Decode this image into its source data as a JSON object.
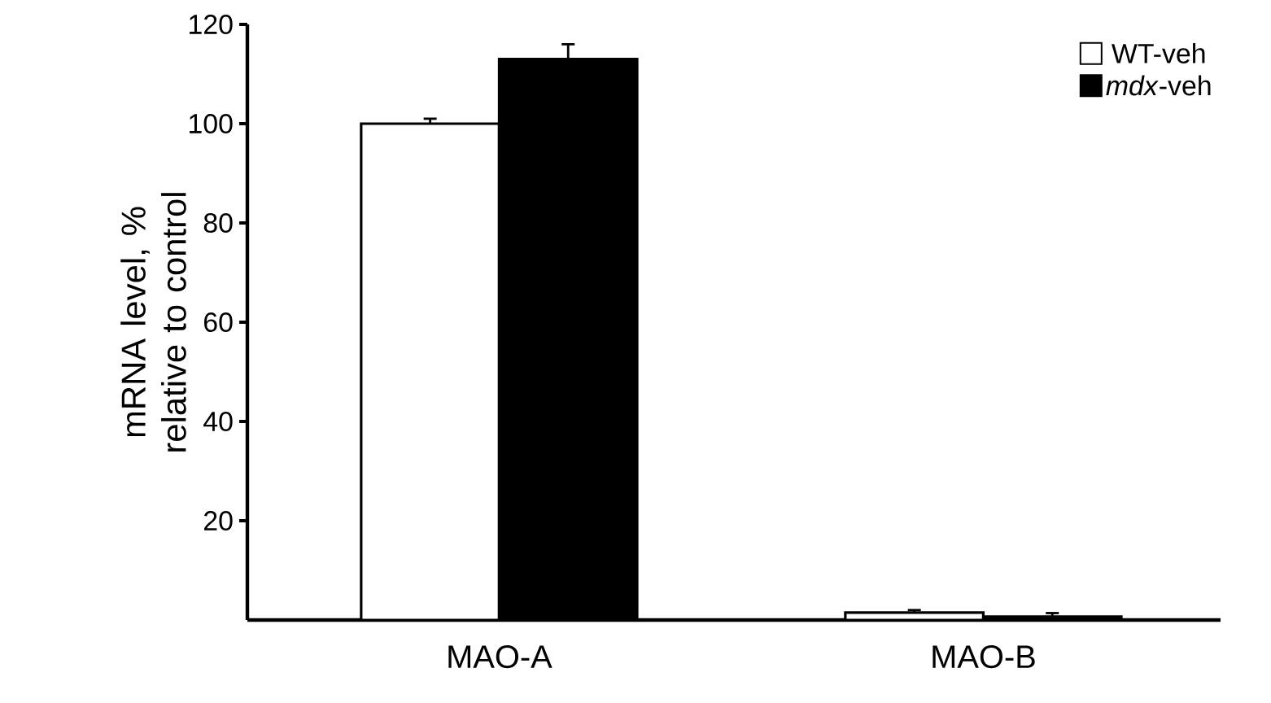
{
  "chart_data": {
    "type": "bar",
    "ylabel": "mRNA level, % relative to control",
    "categories": [
      "MAO-A",
      "MAO-B"
    ],
    "series": [
      {
        "name": "WT-veh",
        "color": "#ffffff",
        "values": [
          100,
          1.5
        ],
        "errors": [
          [
            100,
            101
          ],
          [
            1.5,
            2
          ]
        ]
      },
      {
        "name": "*mdx*-veh",
        "color": "#000000",
        "values": [
          113,
          0.7
        ],
        "errors": [
          [
            113,
            116
          ],
          [
            0.7,
            1.4
          ]
        ]
      }
    ],
    "ylim": [
      0,
      120
    ],
    "yticks": [
      20,
      40,
      60,
      80,
      100,
      120
    ],
    "legend": "top right",
    "grid": false
  }
}
